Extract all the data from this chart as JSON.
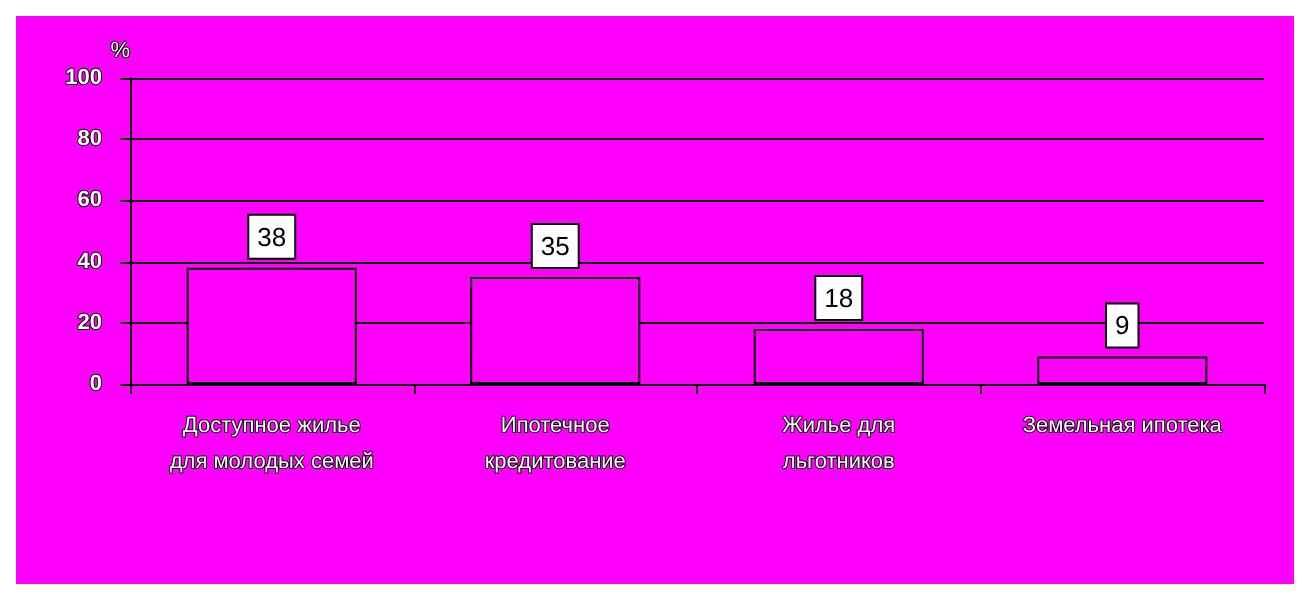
{
  "chart_data": {
    "type": "bar",
    "ylabel": "%",
    "categories": [
      "Доступное жилье\nдля молодых семей",
      "Ипотечное\nкредитование",
      "Жилье для\nльготников",
      "Земельная ипотека"
    ],
    "values": [
      38,
      35,
      18,
      9
    ],
    "color": "#ff00ff",
    "ylim": [
      0,
      100
    ],
    "yticks": [
      0,
      20,
      40,
      60,
      80,
      100
    ],
    "grid": "y",
    "data_labels": true
  }
}
